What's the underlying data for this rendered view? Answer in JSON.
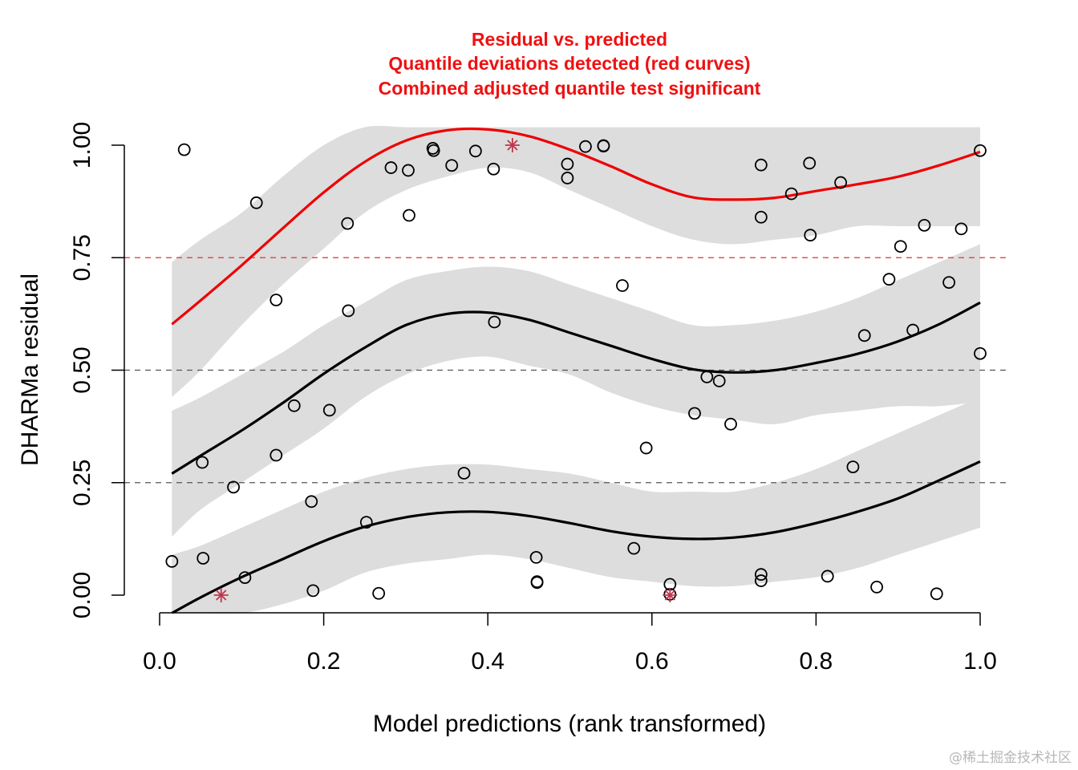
{
  "chart_data": {
    "type": "scatter",
    "title_lines": [
      "Residual vs. predicted",
      "Quantile deviations detected (red curves)",
      "Combined adjusted quantile test significant"
    ],
    "xlabel": "Model predictions (rank transformed)",
    "ylabel": "DHARMa residual",
    "xlim": [
      0,
      1
    ],
    "ylim": [
      0,
      1
    ],
    "x_ticks": [
      "0.0",
      "0.2",
      "0.4",
      "0.6",
      "0.8",
      "1.0"
    ],
    "y_ticks": [
      "0.00",
      "0.25",
      "0.50",
      "0.75",
      "1.00"
    ],
    "reference_lines": [
      {
        "y": 0.25,
        "color": "#555555"
      },
      {
        "y": 0.5,
        "color": "#555555"
      },
      {
        "y": 0.75,
        "color": "#e8302f"
      }
    ],
    "colors": {
      "band": "#dddddd",
      "upper_curve": "#ee0000",
      "quantile_curve": "#000000",
      "outlier": "#c0354e",
      "title": "#ee1111"
    },
    "series": [
      {
        "kind": "points",
        "points": [
          [
            0.015,
            0.075
          ],
          [
            0.03,
            0.99
          ],
          [
            0.052,
            0.295
          ],
          [
            0.053,
            0.082
          ],
          [
            0.09,
            0.24
          ],
          [
            0.104,
            0.039
          ],
          [
            0.118,
            0.872
          ],
          [
            0.142,
            0.656
          ],
          [
            0.142,
            0.311
          ],
          [
            0.164,
            0.421
          ],
          [
            0.185,
            0.208
          ],
          [
            0.187,
            0.01
          ],
          [
            0.207,
            0.411
          ],
          [
            0.229,
            0.826
          ],
          [
            0.23,
            0.632
          ],
          [
            0.252,
            0.162
          ],
          [
            0.267,
            0.004
          ],
          [
            0.282,
            0.95
          ],
          [
            0.303,
            0.944
          ],
          [
            0.304,
            0.844
          ],
          [
            0.333,
            0.993
          ],
          [
            0.334,
            0.988
          ],
          [
            0.356,
            0.955
          ],
          [
            0.371,
            0.271
          ],
          [
            0.385,
            0.987
          ],
          [
            0.407,
            0.947
          ],
          [
            0.408,
            0.607
          ],
          [
            0.459,
            0.084
          ],
          [
            0.46,
            0.03
          ],
          [
            0.46,
            0.028
          ],
          [
            0.497,
            0.958
          ],
          [
            0.497,
            0.927
          ],
          [
            0.519,
            0.997
          ],
          [
            0.541,
            0.998
          ],
          [
            0.541,
            0.999
          ],
          [
            0.564,
            0.688
          ],
          [
            0.578,
            0.104
          ],
          [
            0.593,
            0.327
          ],
          [
            0.622,
            0.024
          ],
          [
            0.622,
            0.002
          ],
          [
            0.652,
            0.404
          ],
          [
            0.667,
            0.485
          ],
          [
            0.682,
            0.476
          ],
          [
            0.696,
            0.38
          ],
          [
            0.733,
            0.956
          ],
          [
            0.733,
            0.84
          ],
          [
            0.733,
            0.046
          ],
          [
            0.733,
            0.032
          ],
          [
            0.77,
            0.892
          ],
          [
            0.792,
            0.96
          ],
          [
            0.793,
            0.8
          ],
          [
            0.814,
            0.042
          ],
          [
            0.83,
            0.917
          ],
          [
            0.845,
            0.285
          ],
          [
            0.859,
            0.577
          ],
          [
            0.874,
            0.018
          ],
          [
            0.889,
            0.702
          ],
          [
            0.903,
            0.775
          ],
          [
            0.918,
            0.589
          ],
          [
            0.932,
            0.822
          ],
          [
            0.947,
            0.003
          ],
          [
            0.962,
            0.695
          ],
          [
            0.977,
            0.814
          ],
          [
            1.0,
            0.988
          ],
          [
            1.0,
            0.537
          ]
        ]
      },
      {
        "kind": "outliers",
        "points": [
          [
            0.075,
            0.0
          ],
          [
            0.43,
            1.0
          ],
          [
            0.622,
            0.0
          ]
        ]
      },
      {
        "kind": "quantile_curve",
        "quantile": 0.75,
        "color": "#ee0000",
        "x": [
          0.015,
          0.05,
          0.1,
          0.15,
          0.2,
          0.25,
          0.3,
          0.35,
          0.4,
          0.45,
          0.5,
          0.55,
          0.6,
          0.65,
          0.7,
          0.75,
          0.8,
          0.85,
          0.9,
          0.95,
          1.0
        ],
        "y": [
          0.602,
          0.655,
          0.733,
          0.815,
          0.895,
          0.963,
          1.01,
          1.033,
          1.035,
          1.02,
          0.99,
          0.953,
          0.913,
          0.884,
          0.879,
          0.883,
          0.898,
          0.913,
          0.93,
          0.955,
          0.985
        ],
        "band_upper": [
          0.74,
          0.79,
          0.85,
          0.93,
          1.0,
          1.04,
          1.04,
          1.04,
          1.04,
          1.04,
          1.04,
          1.04,
          1.04,
          1.04,
          1.04,
          1.04,
          1.04,
          1.04,
          1.04,
          1.04,
          1.04
        ],
        "band_lower": [
          0.44,
          0.5,
          0.6,
          0.69,
          0.77,
          0.85,
          0.9,
          0.93,
          0.95,
          0.94,
          0.9,
          0.86,
          0.82,
          0.79,
          0.78,
          0.79,
          0.8,
          0.82,
          0.82,
          0.82,
          0.82
        ]
      },
      {
        "kind": "quantile_curve",
        "quantile": 0.5,
        "color": "#000000",
        "x": [
          0.015,
          0.05,
          0.1,
          0.15,
          0.2,
          0.25,
          0.3,
          0.35,
          0.4,
          0.45,
          0.5,
          0.55,
          0.6,
          0.65,
          0.7,
          0.75,
          0.8,
          0.85,
          0.9,
          0.95,
          1.0
        ],
        "y": [
          0.27,
          0.31,
          0.366,
          0.427,
          0.492,
          0.55,
          0.6,
          0.625,
          0.628,
          0.612,
          0.583,
          0.554,
          0.525,
          0.502,
          0.495,
          0.5,
          0.516,
          0.536,
          0.564,
          0.602,
          0.65
        ],
        "band_upper": [
          0.41,
          0.44,
          0.49,
          0.54,
          0.6,
          0.65,
          0.7,
          0.72,
          0.73,
          0.72,
          0.69,
          0.66,
          0.63,
          0.6,
          0.6,
          0.61,
          0.63,
          0.66,
          0.7,
          0.74,
          0.78
        ],
        "band_lower": [
          0.13,
          0.19,
          0.25,
          0.31,
          0.37,
          0.44,
          0.49,
          0.52,
          0.53,
          0.51,
          0.49,
          0.45,
          0.42,
          0.4,
          0.39,
          0.38,
          0.4,
          0.41,
          0.42,
          0.42,
          0.43
        ]
      },
      {
        "kind": "quantile_curve",
        "quantile": 0.25,
        "color": "#000000",
        "x": [
          0.015,
          0.05,
          0.1,
          0.15,
          0.2,
          0.25,
          0.3,
          0.35,
          0.4,
          0.45,
          0.5,
          0.55,
          0.6,
          0.65,
          0.7,
          0.75,
          0.8,
          0.85,
          0.9,
          0.95,
          1.0
        ],
        "y": [
          -0.04,
          -0.005,
          0.04,
          0.08,
          0.12,
          0.152,
          0.173,
          0.184,
          0.185,
          0.176,
          0.16,
          0.142,
          0.13,
          0.125,
          0.128,
          0.14,
          0.16,
          0.185,
          0.215,
          0.255,
          0.297
        ],
        "band_upper": [
          0.09,
          0.11,
          0.15,
          0.19,
          0.23,
          0.26,
          0.28,
          0.29,
          0.29,
          0.28,
          0.27,
          0.25,
          0.23,
          0.23,
          0.23,
          0.25,
          0.28,
          0.32,
          0.36,
          0.4,
          0.44
        ],
        "band_lower": [
          -0.04,
          -0.04,
          -0.04,
          -0.02,
          0.01,
          0.05,
          0.07,
          0.08,
          0.09,
          0.08,
          0.06,
          0.04,
          0.03,
          0.02,
          0.02,
          0.03,
          0.04,
          0.06,
          0.09,
          0.12,
          0.15
        ]
      }
    ]
  },
  "watermark": "@稀土掘金技术社区"
}
